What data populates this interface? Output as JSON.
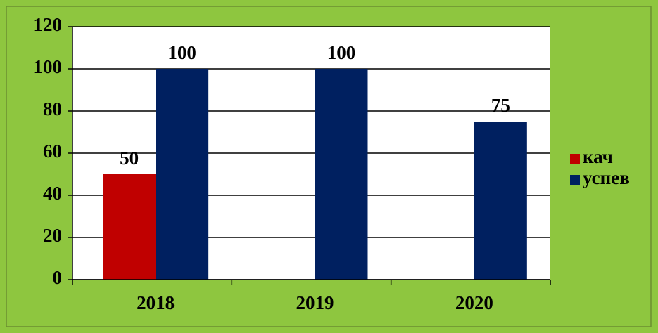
{
  "chart_data": {
    "type": "bar",
    "categories": [
      "2018",
      "2019",
      "2020"
    ],
    "series": [
      {
        "name": "кач",
        "color": "#c00000",
        "values": [
          50,
          null,
          null
        ]
      },
      {
        "name": "успев",
        "color": "#002060",
        "values": [
          100,
          100,
          75
        ]
      }
    ],
    "ylim": [
      0,
      120
    ],
    "yticks": [
      0,
      20,
      40,
      60,
      80,
      100,
      120
    ],
    "grid": true,
    "legend": "right"
  }
}
